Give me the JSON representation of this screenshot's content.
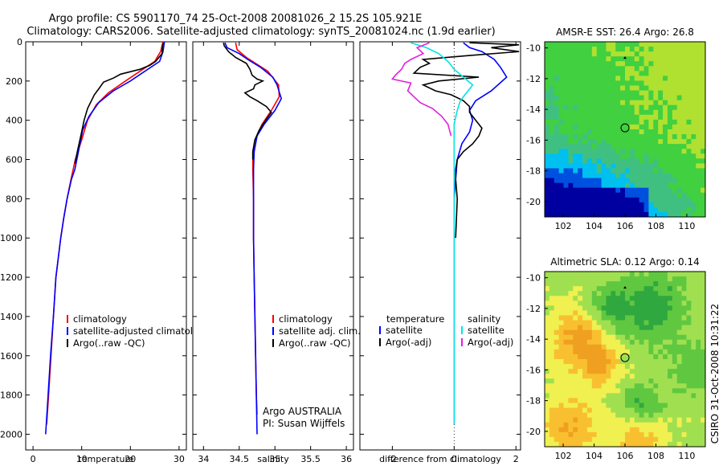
{
  "header": {
    "line1": "Argo profile: CS 5901170_74 25-Oct-2008 20081026_2 15.2S 105.921E",
    "line2": "Climatology: CARS2006. Satellite-adjusted climatology: synTS_20081024.nc (1.9d earlier)"
  },
  "side_label": "CSIRO 31-Oct-2008 10:31:22",
  "info": {
    "line1": "Argo AUSTRALIA",
    "line2": "PI: Susan Wijffels"
  },
  "colors": {
    "climatology": "#ff0000",
    "satellite": "#0000ff",
    "argo": "#000000",
    "cyan": "#00e5e5",
    "magenta": "#e020e0"
  },
  "chart_data": [
    {
      "type": "line",
      "xlabel": "temperature",
      "xlim": [
        -1.5,
        31.5
      ],
      "xticks": [
        "0",
        "10",
        "20",
        "30"
      ],
      "ylim": [
        2080,
        0
      ],
      "yticks": [
        "0",
        "200",
        "400",
        "600",
        "800",
        "1000",
        "1200",
        "1400",
        "1600",
        "1800",
        "2000"
      ],
      "legend": [
        "climatology",
        "satellite-adjusted climatology",
        "Argo(..raw -QC)"
      ],
      "series": [
        {
          "name": "climatology",
          "color": "#ff0000",
          "points": [
            [
              26.7,
              0
            ],
            [
              26.2,
              50
            ],
            [
              25,
              100
            ],
            [
              22,
              150
            ],
            [
              19,
              200
            ],
            [
              15.5,
              260
            ],
            [
              13,
              320
            ],
            [
              11.2,
              400
            ],
            [
              10,
              500
            ],
            [
              8.7,
              600
            ],
            [
              7.8,
              700
            ],
            [
              7,
              800
            ],
            [
              6.3,
              900
            ],
            [
              5.7,
              1000
            ],
            [
              5.2,
              1100
            ],
            [
              4.7,
              1200
            ],
            [
              4.2,
              1400
            ],
            [
              3.7,
              1600
            ],
            [
              3.2,
              1800
            ],
            [
              2.8,
              1950
            ]
          ]
        },
        {
          "name": "satellite-adjusted climatology",
          "color": "#0000ff",
          "points": [
            [
              27,
              0
            ],
            [
              26.7,
              50
            ],
            [
              26,
              100
            ],
            [
              23,
              150
            ],
            [
              20,
              200
            ],
            [
              16.5,
              250
            ],
            [
              13.5,
              310
            ],
            [
              11.5,
              380
            ],
            [
              10.2,
              450
            ],
            [
              9.4,
              550
            ],
            [
              8.6,
              650
            ],
            [
              7.9,
              700
            ],
            [
              7,
              800
            ],
            [
              6.3,
              900
            ],
            [
              5.7,
              1000
            ],
            [
              5.2,
              1100
            ],
            [
              4.7,
              1200
            ],
            [
              4.2,
              1400
            ],
            [
              3.6,
              1600
            ],
            [
              3.1,
              1800
            ],
            [
              2.6,
              2000
            ]
          ]
        },
        {
          "name": "Argo(..raw -QC)",
          "color": "#000000",
          "points": [
            [
              26.8,
              5
            ],
            [
              26.6,
              20
            ],
            [
              26.5,
              60
            ],
            [
              25.2,
              100
            ],
            [
              24,
              120
            ],
            [
              22,
              140
            ],
            [
              18,
              165
            ],
            [
              16.5,
              185
            ],
            [
              14.5,
              205
            ],
            [
              13.5,
              240
            ],
            [
              12.6,
              270
            ],
            [
              12,
              300
            ],
            [
              11.2,
              340
            ],
            [
              10.5,
              400
            ],
            [
              9.9,
              470
            ],
            [
              9.2,
              550
            ],
            [
              8.6,
              620
            ]
          ]
        }
      ]
    },
    {
      "type": "line",
      "xlabel": "salinity",
      "xlim": [
        33.85,
        36.1
      ],
      "xticks": [
        "34",
        "34.5",
        "35",
        "35.5",
        "36"
      ],
      "ylim": [
        2080,
        0
      ],
      "legend": [
        "climatology",
        "satellite adj. clim.",
        "Argo(..raw -QC)"
      ],
      "series": [
        {
          "name": "climatology",
          "color": "#ff0000",
          "points": [
            [
              34.45,
              5
            ],
            [
              34.47,
              40
            ],
            [
              34.6,
              80
            ],
            [
              34.9,
              150
            ],
            [
              35.05,
              220
            ],
            [
              35.06,
              280
            ],
            [
              34.95,
              350
            ],
            [
              34.82,
              420
            ],
            [
              34.72,
              500
            ],
            [
              34.69,
              560
            ],
            [
              34.69,
              650
            ],
            [
              34.7,
              800
            ],
            [
              34.7,
              1000
            ],
            [
              34.71,
              1200
            ],
            [
              34.72,
              1400
            ],
            [
              34.73,
              1600
            ],
            [
              34.74,
              1800
            ],
            [
              34.75,
              1900
            ]
          ]
        },
        {
          "name": "satellite adj. clim.",
          "color": "#0000ff",
          "points": [
            [
              34.3,
              5
            ],
            [
              34.33,
              30
            ],
            [
              34.5,
              60
            ],
            [
              34.62,
              90
            ],
            [
              34.8,
              130
            ],
            [
              34.97,
              180
            ],
            [
              35.03,
              220
            ],
            [
              35.09,
              290
            ],
            [
              35.0,
              350
            ],
            [
              34.85,
              420
            ],
            [
              34.75,
              480
            ],
            [
              34.71,
              560
            ],
            [
              34.7,
              650
            ],
            [
              34.7,
              800
            ],
            [
              34.7,
              1000
            ],
            [
              34.71,
              1200
            ],
            [
              34.72,
              1400
            ],
            [
              34.73,
              1600
            ],
            [
              34.74,
              1800
            ],
            [
              34.75,
              2000
            ]
          ]
        },
        {
          "name": "Argo(..raw -QC)",
          "color": "#000000",
          "points": [
            [
              34.28,
              5
            ],
            [
              34.29,
              20
            ],
            [
              34.35,
              50
            ],
            [
              34.45,
              80
            ],
            [
              34.6,
              110
            ],
            [
              34.65,
              140
            ],
            [
              34.68,
              170
            ],
            [
              34.75,
              190
            ],
            [
              34.83,
              200
            ],
            [
              34.72,
              220
            ],
            [
              34.7,
              240
            ],
            [
              34.58,
              260
            ],
            [
              34.65,
              280
            ],
            [
              34.75,
              300
            ],
            [
              34.88,
              330
            ],
            [
              34.95,
              360
            ],
            [
              34.87,
              400
            ],
            [
              34.78,
              450
            ],
            [
              34.72,
              500
            ],
            [
              34.69,
              560
            ],
            [
              34.69,
              600
            ]
          ]
        }
      ]
    },
    {
      "type": "line",
      "xlabel": "difference from climatology",
      "xlim": [
        -3.05,
        2.15
      ],
      "xticks": [
        "-2",
        "0",
        "2"
      ],
      "ylim": [
        2080,
        0
      ],
      "legend_temperature": {
        "title": "temperature",
        "items": [
          "satellite",
          "Argo(-adj)"
        ]
      },
      "legend_salinity": {
        "title": "salinity",
        "items": [
          "satellite",
          "Argo(-adj)"
        ]
      },
      "series": [
        {
          "name": "satellite",
          "color": "#0000ff",
          "points": [
            [
              0.3,
              5
            ],
            [
              0.5,
              30
            ],
            [
              0.9,
              50
            ],
            [
              1.3,
              90
            ],
            [
              1.5,
              130
            ],
            [
              1.7,
              180
            ],
            [
              1.2,
              250
            ],
            [
              0.7,
              300
            ],
            [
              0.5,
              350
            ],
            [
              0.6,
              400
            ],
            [
              0.5,
              460
            ],
            [
              0.25,
              520
            ],
            [
              0.1,
              600
            ],
            [
              0.05,
              700
            ],
            [
              0,
              800
            ],
            [
              0,
              1000
            ],
            [
              0,
              1200
            ],
            [
              0,
              1400
            ],
            [
              0,
              1600
            ],
            [
              0,
              1800
            ],
            [
              0,
              1950
            ]
          ]
        },
        {
          "name": "Argo(-adj)",
          "color": "#000000",
          "points": [
            [
              0.5,
              5
            ],
            [
              2.1,
              15
            ],
            [
              1.2,
              30
            ],
            [
              2.1,
              50
            ],
            [
              0.5,
              70
            ],
            [
              -1,
              90
            ],
            [
              -0.8,
              110
            ],
            [
              -1.1,
              130
            ],
            [
              -1.3,
              160
            ],
            [
              0.8,
              180
            ],
            [
              -0.5,
              200
            ],
            [
              -1,
              220
            ],
            [
              -0.6,
              250
            ],
            [
              -0.1,
              270
            ],
            [
              0.3,
              300
            ],
            [
              0.5,
              330
            ],
            [
              0.5,
              360
            ],
            [
              0.7,
              400
            ],
            [
              0.9,
              440
            ],
            [
              0.8,
              480
            ],
            [
              0.6,
              520
            ],
            [
              0.3,
              560
            ],
            [
              0.1,
              600
            ],
            [
              0.05,
              650
            ],
            [
              0.05,
              700
            ],
            [
              0.1,
              800
            ],
            [
              0.05,
              1000
            ]
          ]
        },
        {
          "name": "satellite",
          "color": "#00e5e5",
          "points": [
            [
              -1.4,
              5
            ],
            [
              -0.9,
              30
            ],
            [
              -0.5,
              60
            ],
            [
              -0.2,
              100
            ],
            [
              0,
              140
            ],
            [
              0.3,
              180
            ],
            [
              0.6,
              220
            ],
            [
              0.4,
              260
            ],
            [
              0.2,
              300
            ],
            [
              0.1,
              350
            ],
            [
              0,
              420
            ],
            [
              0,
              500
            ],
            [
              0,
              600
            ],
            [
              0,
              800
            ],
            [
              0,
              1000
            ],
            [
              0,
              1200
            ],
            [
              0,
              1400
            ],
            [
              0,
              1600
            ],
            [
              0,
              1800
            ],
            [
              0,
              1950
            ]
          ]
        },
        {
          "name": "Argo(-adj)",
          "color": "#e020e0",
          "points": [
            [
              -0.8,
              5
            ],
            [
              -1.2,
              30
            ],
            [
              -1,
              60
            ],
            [
              -1.4,
              90
            ],
            [
              -1.6,
              110
            ],
            [
              -1.7,
              140
            ],
            [
              -1.9,
              170
            ],
            [
              -2,
              190
            ],
            [
              -1.4,
              210
            ],
            [
              -1.5,
              250
            ],
            [
              -1.3,
              280
            ],
            [
              -1.1,
              310
            ],
            [
              -0.7,
              340
            ],
            [
              -0.4,
              380
            ],
            [
              -0.2,
              420
            ],
            [
              -0.1,
              480
            ]
          ]
        }
      ]
    },
    {
      "type": "heatmap",
      "title": "AMSR-E SST: 26.4 Argo: 26.8",
      "xlim": [
        100.8,
        111.2
      ],
      "ylim": [
        -21,
        -9.6
      ],
      "xticks": [
        "102",
        "104",
        "106",
        "108",
        "110"
      ],
      "yticks": [
        "-10",
        "-12",
        "-14",
        "-16",
        "-18",
        "-20"
      ],
      "profile_location": [
        106,
        -15.2
      ],
      "colormap": [
        "#0000a0",
        "#0050e0",
        "#00c0f0",
        "#40c080",
        "#40d040",
        "#b0e030"
      ]
    },
    {
      "type": "heatmap",
      "title": "Altimetric SLA: 0.12 Argo: 0.14",
      "xlim": [
        100.8,
        111.2
      ],
      "ylim": [
        -21,
        -9.6
      ],
      "xticks": [
        "102",
        "104",
        "106",
        "108",
        "110"
      ],
      "yticks": [
        "-10",
        "-12",
        "-14",
        "-16",
        "-18",
        "-20"
      ],
      "profile_location": [
        106,
        -15.2
      ],
      "colormap": [
        "#30a840",
        "#60c840",
        "#a0e050",
        "#f0f050",
        "#f8c030",
        "#f0a020"
      ]
    }
  ]
}
